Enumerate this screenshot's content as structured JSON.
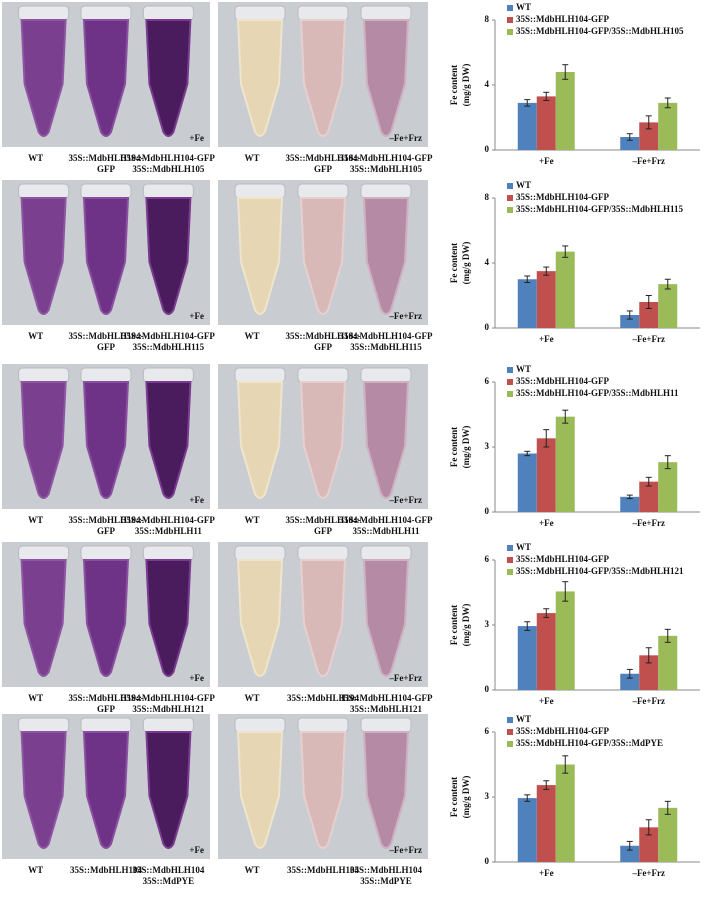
{
  "panels": [
    {
      "left": {
        "condition": "+Fe",
        "labels": [
          [
            "WT"
          ],
          [
            "35S::MdbHLH104-",
            "GFP"
          ],
          [
            "35S::MdbHLH104-GFP",
            "35S::MdbHLH105"
          ]
        ]
      },
      "right": {
        "condition": "–Fe+Frz",
        "labels": [
          [
            "WT"
          ],
          [
            "35S::MdbHLH104-",
            "GFP"
          ],
          [
            "35S::MdbHLH104-GFP",
            "35S::MdbHLH105"
          ]
        ]
      }
    },
    {
      "left": {
        "condition": "+Fe",
        "labels": [
          [
            "WT"
          ],
          [
            "35S::MdbHLH104-",
            "GFP"
          ],
          [
            "35S::MdbHLH104-GFP",
            "35S::MdbHLH115"
          ]
        ]
      },
      "right": {
        "condition": "–Fe+Frz",
        "labels": [
          [
            "WT"
          ],
          [
            "35S::MdbHLH104-",
            "GFP"
          ],
          [
            "35S::MdbHLH104-GFP",
            "35S::MdbHLH115"
          ]
        ]
      }
    },
    {
      "left": {
        "condition": "+Fe",
        "labels": [
          [
            "WT"
          ],
          [
            "35S::MdbHLH104-",
            "GFP"
          ],
          [
            "35S::MdbHLH104-GFP",
            "35S::MdbHLH11"
          ]
        ]
      },
      "right": {
        "condition": "–Fe+Frz",
        "labels": [
          [
            "WT"
          ],
          [
            "35S::MdbHLH104-",
            "GFP"
          ],
          [
            "35S::MdbHLH104-GFP",
            "35S::MdbHLH11"
          ]
        ]
      }
    },
    {
      "left": {
        "condition": "+Fe",
        "labels": [
          [
            "WT"
          ],
          [
            "35S::MdbHLH104-",
            "GFP"
          ],
          [
            "35S::MdbHLH104-GFP",
            "35S::MdbHLH121"
          ]
        ]
      },
      "right": {
        "condition": "–Fe+Frz",
        "labels": [
          [
            "WT"
          ],
          [
            "35S::MdbHLH104"
          ],
          [
            "35S::MdbHLH104-GFP",
            "35S::MdbHLH121"
          ]
        ]
      }
    },
    {
      "left": {
        "condition": "+Fe",
        "labels": [
          [
            "WT"
          ],
          [
            "35S::MdbHLH104"
          ],
          [
            "35S::MdbHLH104",
            "35S::MdPYE"
          ]
        ]
      },
      "right": {
        "condition": "–Fe+Frz",
        "labels": [
          [
            "WT"
          ],
          [
            "35S::MdbHLH104"
          ],
          [
            "35S::MdbHLH104",
            "35S::MdPYE"
          ]
        ]
      }
    }
  ],
  "chart_data": [
    {
      "type": "bar",
      "y_label": [
        "Fe content",
        "(mg/g DW)"
      ],
      "categories": [
        "+Fe",
        "–Fe+Frz"
      ],
      "ylim": [
        0,
        8
      ],
      "yticks": [
        0,
        4,
        8
      ],
      "legend": "top-left",
      "series": [
        {
          "name": "WT",
          "color": "#4f81bd",
          "values": [
            2.9,
            0.8
          ],
          "errors": [
            0.2,
            0.2
          ]
        },
        {
          "name": "35S::MdbHLH104-GFP",
          "color": "#c0504d",
          "values": [
            3.3,
            1.7
          ],
          "errors": [
            0.25,
            0.4
          ]
        },
        {
          "name": "35S::MdbHLH104-GFP/35S::MdbHLH105",
          "color": "#9bbb59",
          "values": [
            4.8,
            2.9
          ],
          "errors": [
            0.45,
            0.3
          ]
        }
      ]
    },
    {
      "type": "bar",
      "y_label": [
        "Fe content",
        "(mg/g DW)"
      ],
      "categories": [
        "+Fe",
        "–Fe+Frz"
      ],
      "ylim": [
        0,
        8
      ],
      "yticks": [
        0,
        4,
        8
      ],
      "legend": "top-left",
      "series": [
        {
          "name": "WT",
          "color": "#4f81bd",
          "values": [
            3.0,
            0.8
          ],
          "errors": [
            0.2,
            0.25
          ]
        },
        {
          "name": "35S::MdbHLH104-GFP",
          "color": "#c0504d",
          "values": [
            3.5,
            1.6
          ],
          "errors": [
            0.25,
            0.4
          ]
        },
        {
          "name": "35S::MdbHLH104-GFP/35S::MdbHLH115",
          "color": "#9bbb59",
          "values": [
            4.7,
            2.7
          ],
          "errors": [
            0.35,
            0.3
          ]
        }
      ]
    },
    {
      "type": "bar",
      "y_label": [
        "Fe content",
        "(mg/g DW)"
      ],
      "categories": [
        "+Fe",
        "–Fe+Frz"
      ],
      "ylim": [
        0,
        6
      ],
      "yticks": [
        0,
        3,
        6
      ],
      "legend": "top-left",
      "series": [
        {
          "name": "WT",
          "color": "#4f81bd",
          "values": [
            2.7,
            0.7
          ],
          "errors": [
            0.1,
            0.08
          ]
        },
        {
          "name": "35S::MdbHLH104-GFP",
          "color": "#c0504d",
          "values": [
            3.4,
            1.4
          ],
          "errors": [
            0.4,
            0.2
          ]
        },
        {
          "name": "35S::MdbHLH104-GFP/35S::MdbHLH11",
          "color": "#9bbb59",
          "values": [
            4.4,
            2.3
          ],
          "errors": [
            0.3,
            0.3
          ]
        }
      ]
    },
    {
      "type": "bar",
      "y_label": [
        "Fe content",
        "(mg/g DW)"
      ],
      "categories": [
        "+Fe",
        "–Fe+Frz"
      ],
      "ylim": [
        0,
        6
      ],
      "yticks": [
        0,
        3,
        6
      ],
      "legend": "top-left",
      "series": [
        {
          "name": "WT",
          "color": "#4f81bd",
          "values": [
            2.95,
            0.75
          ],
          "errors": [
            0.2,
            0.2
          ]
        },
        {
          "name": "35S::MdbHLH104-GFP",
          "color": "#c0504d",
          "values": [
            3.55,
            1.6
          ],
          "errors": [
            0.2,
            0.35
          ]
        },
        {
          "name": "35S::MdbHLH104-GFP/35S::MdbHLH121",
          "color": "#9bbb59",
          "values": [
            4.55,
            2.5
          ],
          "errors": [
            0.45,
            0.3
          ]
        }
      ]
    },
    {
      "type": "bar",
      "y_label": [
        "Fe content",
        "(mg/g DW)"
      ],
      "categories": [
        "+Fe",
        "–Fe+Frz"
      ],
      "ylim": [
        0,
        6
      ],
      "yticks": [
        0,
        3,
        6
      ],
      "legend": "top-left",
      "series": [
        {
          "name": "WT",
          "color": "#4f81bd",
          "values": [
            2.95,
            0.75
          ],
          "errors": [
            0.15,
            0.2
          ]
        },
        {
          "name": "35S::MdbHLH104-GFP",
          "color": "#c0504d",
          "values": [
            3.55,
            1.6
          ],
          "errors": [
            0.2,
            0.35
          ]
        },
        {
          "name": "35S::MdbHLH104-GFP/35S::MdPYE",
          "color": "#9bbb59",
          "values": [
            4.5,
            2.5
          ],
          "errors": [
            0.4,
            0.3
          ]
        }
      ]
    }
  ]
}
